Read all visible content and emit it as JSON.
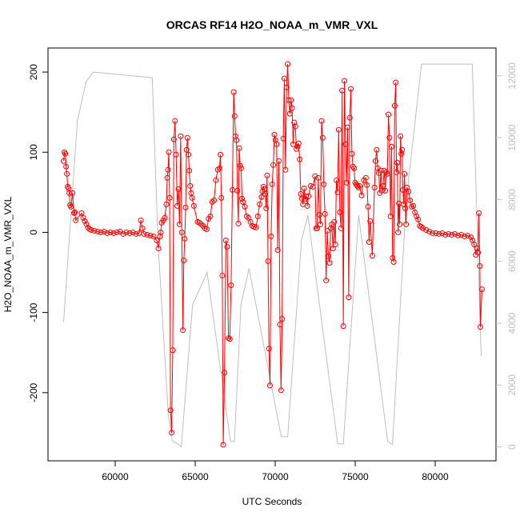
{
  "chart_data": {
    "type": "line",
    "title": "ORCAS RF14 H2O_NOAA_m_VMR_VXL",
    "xlabel": "UTC Seconds",
    "ylabel": "H2O_NOAA_m_VMR_VXL",
    "xlim": [
      55800,
      83800
    ],
    "ylim": [
      -285,
      230
    ],
    "y2lim": [
      -450,
      12900
    ],
    "xticks": [
      60000,
      65000,
      70000,
      75000,
      80000
    ],
    "yticks": [
      -200,
      -100,
      0,
      100,
      200
    ],
    "y2ticks": [
      0,
      2000,
      4000,
      6000,
      8000,
      10000,
      12000
    ],
    "grid": false,
    "colors": {
      "h2o": "#ff0000",
      "secondary": "#bebebe",
      "axis": "#000000"
    },
    "series": [
      {
        "axis": "left",
        "style": "line+open-circles",
        "points": [
          [
            56780,
            89
          ],
          [
            56830,
            100
          ],
          [
            56880,
            98
          ],
          [
            56930,
            82
          ],
          [
            56980,
            73
          ],
          [
            57030,
            57
          ],
          [
            57080,
            55
          ],
          [
            57130,
            49
          ],
          [
            57180,
            34
          ],
          [
            57230,
            32
          ],
          [
            57330,
            49
          ],
          [
            57430,
            24
          ],
          [
            57480,
            25
          ],
          [
            57530,
            15
          ],
          [
            57900,
            24
          ],
          [
            58000,
            18
          ],
          [
            58100,
            14
          ],
          [
            58200,
            10
          ],
          [
            58300,
            6
          ],
          [
            58400,
            4
          ],
          [
            58500,
            3
          ],
          [
            58700,
            2
          ],
          [
            58900,
            1
          ],
          [
            59100,
            0
          ],
          [
            59300,
            1
          ],
          [
            59500,
            -1
          ],
          [
            59700,
            0
          ],
          [
            59900,
            -1
          ],
          [
            60100,
            0
          ],
          [
            60300,
            1
          ],
          [
            60500,
            -2
          ],
          [
            60700,
            0
          ],
          [
            60900,
            -1
          ],
          [
            61100,
            0
          ],
          [
            61300,
            -2
          ],
          [
            61500,
            -1
          ],
          [
            61600,
            15
          ],
          [
            61700,
            5
          ],
          [
            61800,
            -2
          ],
          [
            62000,
            -3
          ],
          [
            62200,
            -4
          ],
          [
            62400,
            -5
          ],
          [
            62600,
            -10
          ],
          [
            62700,
            -20
          ],
          [
            62800,
            -5
          ],
          [
            62850,
            0
          ],
          [
            62900,
            12
          ],
          [
            63000,
            15
          ],
          [
            63100,
            18
          ],
          [
            63200,
            35
          ],
          [
            63250,
            68
          ],
          [
            63300,
            78
          ],
          [
            63350,
            100
          ],
          [
            63400,
            43
          ],
          [
            63460,
            -222
          ],
          [
            63526,
            -250
          ],
          [
            63597,
            -147
          ],
          [
            63667,
            116
          ],
          [
            63738,
            139
          ],
          [
            63808,
            97
          ],
          [
            63879,
            33
          ],
          [
            63949,
            54
          ],
          [
            64020,
            10
          ],
          [
            64090,
            120
          ],
          [
            64161,
            0
          ],
          [
            64231,
            -122
          ],
          [
            64288,
            -35
          ],
          [
            64346,
            -8
          ],
          [
            64403,
            31
          ],
          [
            64460,
            103
          ],
          [
            64517,
            118
          ],
          [
            64575,
            97
          ],
          [
            64632,
            77
          ],
          [
            64689,
            58
          ],
          [
            64746,
            49
          ],
          [
            64804,
            43
          ],
          [
            64918,
            33
          ],
          [
            65147,
            13
          ],
          [
            65262,
            12
          ],
          [
            65376,
            10
          ],
          [
            65491,
            8
          ],
          [
            65605,
            5
          ],
          [
            65720,
            4
          ],
          [
            65834,
            17
          ],
          [
            65949,
            20
          ],
          [
            66063,
            38
          ],
          [
            66178,
            40
          ],
          [
            66292,
            65
          ],
          [
            66407,
            78
          ],
          [
            66521,
            80
          ],
          [
            66578,
            97
          ],
          [
            66636,
            43
          ],
          [
            66693,
            -54
          ],
          [
            66751,
            -265
          ],
          [
            66833,
            -175
          ],
          [
            66915,
            -10
          ],
          [
            66997,
            -18
          ],
          [
            67079,
            -132
          ],
          [
            67161,
            -133
          ],
          [
            67243,
            -66
          ],
          [
            67325,
            53
          ],
          [
            67406,
            175
          ],
          [
            67464,
            145
          ],
          [
            67522,
            120
          ],
          [
            67580,
            115
          ],
          [
            67638,
            52
          ],
          [
            67696,
            11
          ],
          [
            67754,
            105
          ],
          [
            67812,
            83
          ],
          [
            67870,
            80
          ],
          [
            67928,
            42
          ],
          [
            67986,
            38
          ],
          [
            68102,
            32
          ],
          [
            68218,
            20
          ],
          [
            68334,
            18
          ],
          [
            68450,
            13
          ],
          [
            68566,
            8
          ],
          [
            68682,
            7
          ],
          [
            68798,
            6
          ],
          [
            68914,
            20
          ],
          [
            69030,
            35
          ],
          [
            69146,
            44
          ],
          [
            69204,
            51
          ],
          [
            69262,
            57
          ],
          [
            69320,
            54
          ],
          [
            69378,
            48
          ],
          [
            69436,
            30
          ],
          [
            69494,
            71
          ],
          [
            69552,
            -36
          ],
          [
            69610,
            -145
          ],
          [
            69673,
            -191
          ],
          [
            69742,
            -5
          ],
          [
            69812,
            60
          ],
          [
            69881,
            84
          ],
          [
            69950,
            122
          ],
          [
            70019,
            115
          ],
          [
            70089,
            110
          ],
          [
            70158,
            -22
          ],
          [
            70227,
            89
          ],
          [
            70296,
            -115
          ],
          [
            70366,
            -197
          ],
          [
            70435,
            -108
          ],
          [
            70504,
            117
          ],
          [
            70573,
            192
          ],
          [
            70643,
            78
          ],
          [
            70712,
            181
          ],
          [
            70781,
            210
          ],
          [
            70849,
            165
          ],
          [
            70918,
            148
          ],
          [
            70986,
            165
          ],
          [
            71054,
            155
          ],
          [
            71122,
            110
          ],
          [
            71191,
            137
          ],
          [
            71259,
            132
          ],
          [
            71327,
            104
          ],
          [
            71395,
            107
          ],
          [
            71464,
            111
          ],
          [
            71532,
            91
          ],
          [
            71600,
            48
          ],
          [
            71668,
            42
          ],
          [
            71737,
            35
          ],
          [
            71805,
            55
          ],
          [
            71873,
            42
          ],
          [
            71941,
            45
          ],
          [
            72010,
            33
          ],
          [
            72078,
            45
          ],
          [
            72215,
            58
          ],
          [
            72351,
            57
          ],
          [
            72488,
            70
          ],
          [
            72556,
            5
          ],
          [
            72624,
            5
          ],
          [
            72692,
            68
          ],
          [
            72761,
            22
          ],
          [
            72829,
            10
          ],
          [
            72897,
            139
          ],
          [
            72969,
            118
          ],
          [
            73040,
            60
          ],
          [
            73112,
            23
          ],
          [
            73183,
            -60
          ],
          [
            73255,
            2
          ],
          [
            73326,
            -30
          ],
          [
            73398,
            -38
          ],
          [
            73469,
            5
          ],
          [
            73541,
            10
          ],
          [
            73612,
            -20
          ],
          [
            73684,
            13
          ],
          [
            73755,
            -15
          ],
          [
            73827,
            65
          ],
          [
            73898,
            50
          ],
          [
            73970,
            128
          ],
          [
            74041,
            25
          ],
          [
            74113,
            5
          ],
          [
            74184,
            177
          ],
          [
            74258,
            -117
          ],
          [
            74325,
            189
          ],
          [
            74392,
            110
          ],
          [
            74459,
            62
          ],
          [
            74526,
            131
          ],
          [
            74594,
            -81
          ],
          [
            74661,
            143
          ],
          [
            74728,
            179
          ],
          [
            74795,
            98
          ],
          [
            74862,
            82
          ],
          [
            74929,
            80
          ],
          [
            74996,
            62
          ],
          [
            75063,
            60
          ],
          [
            75131,
            58
          ],
          [
            75198,
            56
          ],
          [
            75265,
            58
          ],
          [
            75399,
            46
          ],
          [
            75533,
            65
          ],
          [
            75668,
            68
          ],
          [
            75735,
            59
          ],
          [
            75802,
            32
          ],
          [
            75869,
            -12
          ],
          [
            75936,
            14
          ],
          [
            76070,
            -29
          ],
          [
            76205,
            56
          ],
          [
            76272,
            89
          ],
          [
            76339,
            103
          ],
          [
            76406,
            80
          ],
          [
            76473,
            74
          ],
          [
            76540,
            49
          ],
          [
            76608,
            77
          ],
          [
            76675,
            52
          ],
          [
            76742,
            58
          ],
          [
            76809,
            77
          ],
          [
            76876,
            52
          ],
          [
            76943,
            75
          ],
          [
            77010,
            73
          ],
          [
            77078,
            147
          ],
          [
            77143,
            118
          ],
          [
            77208,
            20
          ],
          [
            77273,
            107
          ],
          [
            77338,
            -32
          ],
          [
            77403,
            -37
          ],
          [
            77468,
            158
          ],
          [
            77532,
            187
          ],
          [
            77582,
            75
          ],
          [
            77632,
            87
          ],
          [
            77682,
            0
          ],
          [
            77732,
            36
          ],
          [
            77782,
            10
          ],
          [
            77832,
            120
          ],
          [
            77882,
            98
          ],
          [
            77932,
            103
          ],
          [
            77982,
            53
          ],
          [
            78032,
            35
          ],
          [
            78082,
            73
          ],
          [
            78132,
            30
          ],
          [
            78182,
            10
          ],
          [
            78232,
            56
          ],
          [
            78332,
            51
          ],
          [
            78432,
            40
          ],
          [
            78532,
            32
          ],
          [
            78632,
            33
          ],
          [
            78732,
            25
          ],
          [
            78832,
            20
          ],
          [
            78932,
            16
          ],
          [
            79032,
            8
          ],
          [
            79132,
            7
          ],
          [
            79232,
            5
          ],
          [
            79432,
            3
          ],
          [
            79632,
            1
          ],
          [
            79832,
            -1
          ],
          [
            80032,
            -1
          ],
          [
            80232,
            -2
          ],
          [
            80432,
            -1
          ],
          [
            80632,
            -3
          ],
          [
            80832,
            -2
          ],
          [
            81032,
            -3
          ],
          [
            81232,
            -2
          ],
          [
            81432,
            -4
          ],
          [
            81632,
            -3
          ],
          [
            81832,
            -5
          ],
          [
            82032,
            -4
          ],
          [
            82232,
            -6
          ],
          [
            82332,
            -10
          ],
          [
            82432,
            -15
          ],
          [
            82532,
            -28
          ],
          [
            82632,
            -20
          ],
          [
            82680,
            -25
          ],
          [
            82722,
            24
          ],
          [
            82790,
            -42
          ],
          [
            82822,
            -118
          ],
          [
            82923,
            -71
          ]
        ]
      },
      {
        "axis": "right",
        "style": "line",
        "points": [
          [
            56776,
            4040
          ],
          [
            57632,
            10530
          ],
          [
            58187,
            11815
          ],
          [
            58640,
            12120
          ],
          [
            62318,
            11940
          ],
          [
            62670,
            6670
          ],
          [
            63325,
            1000
          ],
          [
            63577,
            180
          ],
          [
            63930,
            100
          ],
          [
            64131,
            0
          ],
          [
            64837,
            4600
          ],
          [
            65744,
            5640
          ],
          [
            67205,
            180
          ],
          [
            67457,
            180
          ],
          [
            67860,
            4600
          ],
          [
            68363,
            5770
          ],
          [
            70379,
            330
          ],
          [
            70782,
            330
          ],
          [
            71638,
            6670
          ],
          [
            72041,
            7490
          ],
          [
            73905,
            100
          ],
          [
            74258,
            100
          ],
          [
            75215,
            7490
          ],
          [
            77029,
            180
          ],
          [
            77331,
            80
          ],
          [
            78187,
            7950
          ],
          [
            79144,
            12380
          ],
          [
            82318,
            12380
          ],
          [
            82872,
            2930
          ]
        ]
      }
    ]
  }
}
